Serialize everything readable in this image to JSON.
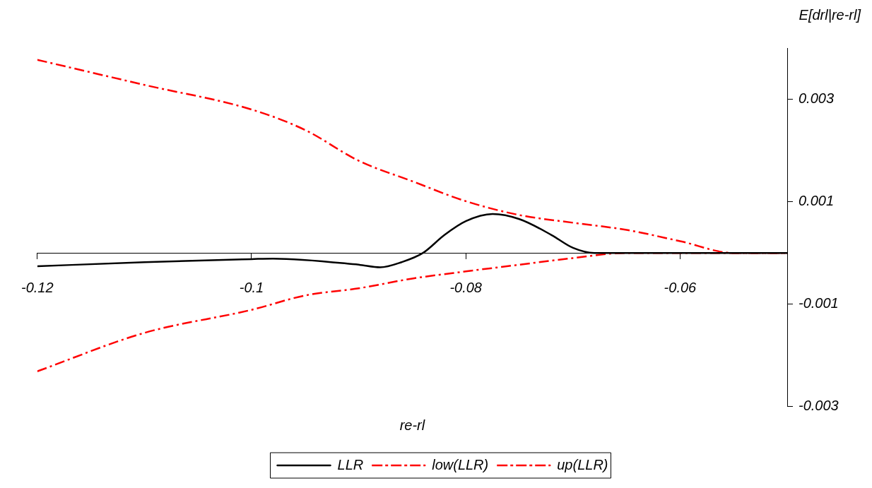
{
  "chart_data": {
    "type": "line",
    "xlabel": "re-rl",
    "ylabel": "E[drl|re-rl]",
    "xlim": [
      -0.12,
      -0.05
    ],
    "xticks": [
      -0.12,
      -0.1,
      -0.08,
      -0.06
    ],
    "ylim": [
      -0.003,
      0.004
    ],
    "yticks": [
      -0.003,
      -0.001,
      0.001,
      0.003
    ],
    "grid": false,
    "legend": "bottom",
    "marker": "none",
    "series": [
      {
        "name": "LLR",
        "color": "#000000",
        "line_style": "solid",
        "x": [
          -0.12,
          -0.11,
          -0.1,
          -0.098,
          -0.09,
          -0.088,
          -0.086,
          -0.084,
          -0.082,
          -0.08,
          -0.0775,
          -0.075,
          -0.072,
          -0.07,
          -0.068,
          -0.066,
          -0.063,
          -0.06,
          -0.055,
          -0.05
        ],
        "values": [
          -0.00026,
          -0.00018,
          -0.00012,
          -0.00011,
          -0.00023,
          -0.00028,
          -0.00018,
          0.0,
          0.00035,
          0.00062,
          0.00076,
          0.00066,
          0.00035,
          0.0001,
          0.0,
          0.0,
          0.0,
          0.0,
          0.0,
          0.0
        ]
      },
      {
        "name": "low(LLR)",
        "color": "#ff0000",
        "line_style": "dashdot",
        "x": [
          -0.12,
          -0.11,
          -0.1,
          -0.095,
          -0.09,
          -0.085,
          -0.08,
          -0.075,
          -0.07,
          -0.065,
          -0.06,
          -0.055,
          -0.05
        ],
        "values": [
          -0.00231,
          -0.00156,
          -0.00111,
          -0.00083,
          -0.00069,
          -0.0005,
          -0.00036,
          -0.00023,
          -0.0001,
          0.0,
          0.0,
          0.0,
          0.0
        ]
      },
      {
        "name": "up(LLR)",
        "color": "#ff0000",
        "line_style": "dashdot",
        "x": [
          -0.12,
          -0.11,
          -0.1,
          -0.095,
          -0.09,
          -0.085,
          -0.08,
          -0.075,
          -0.07,
          -0.065,
          -0.06,
          -0.055,
          -0.05
        ],
        "values": [
          0.00377,
          0.00328,
          0.0028,
          0.0024,
          0.0018,
          0.0014,
          0.00101,
          0.00074,
          0.00059,
          0.00045,
          0.00023,
          0.0,
          0.0
        ]
      }
    ]
  }
}
